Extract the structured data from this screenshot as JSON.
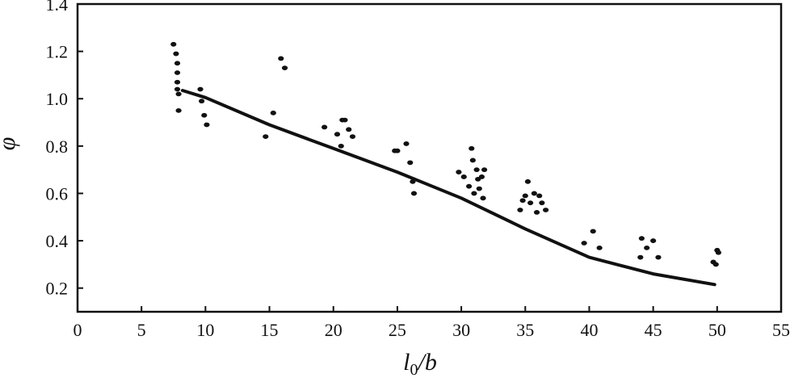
{
  "chart_data": {
    "type": "scatter",
    "xlabel": {
      "main": "l",
      "sub": "0",
      "rest": "/b"
    },
    "ylabel": "φ",
    "xlim": [
      0,
      55
    ],
    "ylim": [
      0.1,
      1.4
    ],
    "xticks": [
      0,
      5,
      10,
      15,
      20,
      25,
      30,
      35,
      40,
      45,
      50,
      55
    ],
    "yticks": [
      0.2,
      0.4,
      0.6,
      0.8,
      1.0,
      1.2,
      1.4
    ],
    "ytick_labels": [
      "0.2",
      "0.4",
      "0.6",
      "0.8",
      "1.0",
      "1.2",
      "1.4"
    ],
    "grid": false,
    "series": [
      {
        "kind": "scatter",
        "points": [
          [
            7.5,
            1.23
          ],
          [
            7.7,
            1.19
          ],
          [
            7.8,
            1.15
          ],
          [
            7.8,
            1.11
          ],
          [
            7.8,
            1.07
          ],
          [
            7.8,
            1.04
          ],
          [
            7.9,
            1.02
          ],
          [
            7.9,
            0.95
          ],
          [
            9.6,
            1.04
          ],
          [
            9.7,
            0.99
          ],
          [
            9.9,
            0.93
          ],
          [
            10.1,
            0.89
          ],
          [
            14.7,
            0.84
          ],
          [
            15.3,
            0.94
          ],
          [
            15.9,
            1.17
          ],
          [
            16.2,
            1.13
          ],
          [
            19.3,
            0.88
          ],
          [
            20.3,
            0.85
          ],
          [
            20.6,
            0.8
          ],
          [
            20.7,
            0.91
          ],
          [
            20.9,
            0.91
          ],
          [
            21.2,
            0.87
          ],
          [
            21.5,
            0.84
          ],
          [
            24.8,
            0.78
          ],
          [
            25.0,
            0.78
          ],
          [
            25.7,
            0.81
          ],
          [
            26.0,
            0.73
          ],
          [
            26.2,
            0.65
          ],
          [
            26.3,
            0.6
          ],
          [
            29.8,
            0.69
          ],
          [
            30.2,
            0.67
          ],
          [
            30.6,
            0.63
          ],
          [
            30.8,
            0.79
          ],
          [
            30.9,
            0.74
          ],
          [
            31.0,
            0.6
          ],
          [
            31.2,
            0.7
          ],
          [
            31.3,
            0.66
          ],
          [
            31.4,
            0.62
          ],
          [
            31.6,
            0.67
          ],
          [
            31.7,
            0.58
          ],
          [
            31.8,
            0.7
          ],
          [
            34.6,
            0.53
          ],
          [
            34.8,
            0.57
          ],
          [
            35.0,
            0.59
          ],
          [
            35.2,
            0.65
          ],
          [
            35.4,
            0.56
          ],
          [
            35.7,
            0.6
          ],
          [
            35.9,
            0.52
          ],
          [
            36.1,
            0.59
          ],
          [
            36.3,
            0.56
          ],
          [
            36.6,
            0.53
          ],
          [
            39.6,
            0.39
          ],
          [
            40.3,
            0.44
          ],
          [
            40.8,
            0.37
          ],
          [
            44.0,
            0.33
          ],
          [
            44.1,
            0.41
          ],
          [
            44.5,
            0.37
          ],
          [
            45.0,
            0.4
          ],
          [
            45.4,
            0.33
          ],
          [
            49.7,
            0.31
          ],
          [
            49.9,
            0.3
          ],
          [
            50.0,
            0.36
          ],
          [
            50.1,
            0.35
          ]
        ]
      },
      {
        "kind": "line",
        "points": [
          [
            8.2,
            1.035
          ],
          [
            10,
            1.005
          ],
          [
            15,
            0.89
          ],
          [
            20,
            0.79
          ],
          [
            25,
            0.69
          ],
          [
            30,
            0.58
          ],
          [
            35,
            0.45
          ],
          [
            40,
            0.33
          ],
          [
            45,
            0.26
          ],
          [
            49.8,
            0.215
          ]
        ]
      }
    ]
  }
}
